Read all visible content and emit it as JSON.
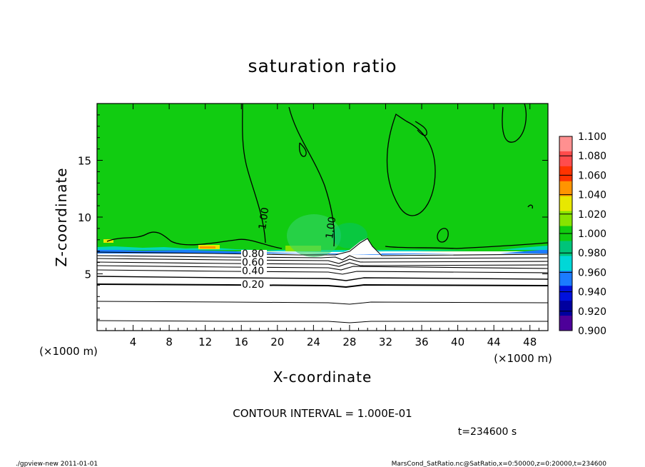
{
  "chart_data": {
    "type": "heatmap",
    "title": "saturation ratio",
    "xlabel": "X-coordinate",
    "ylabel": "Z-coordinate",
    "x_unit": "(×1000 m)",
    "y_unit": "(×1000 m)",
    "xlim": [
      0,
      50
    ],
    "ylim": [
      0,
      20
    ],
    "x_ticks": [
      4,
      8,
      12,
      16,
      20,
      24,
      28,
      32,
      36,
      40,
      44,
      48
    ],
    "y_ticks": [
      5,
      10,
      15
    ],
    "colorbar": {
      "levels": [
        "1.100",
        "1.080",
        "1.060",
        "1.040",
        "1.020",
        "1.000",
        "0.980",
        "0.960",
        "0.940",
        "0.920",
        "0.900"
      ],
      "colors": [
        "#ff9090",
        "#ff4c4c",
        "#ff3300",
        "#ff9400",
        "#e8e800",
        "#87e400",
        "#11cc11",
        "#00c47a",
        "#00d7d7",
        "#1b7bff",
        "#0011dd",
        "#00009f",
        "#4d0099"
      ]
    },
    "contour_labels": [
      "0.80",
      "0.60",
      "0.40",
      "0.20",
      "1.00",
      "1.00"
    ],
    "contour_interval_text": "CONTOUR INTERVAL = 1.000E-01",
    "time_text": "t=234600 s",
    "footer_left": "./gpview-new   2011-01-01",
    "footer_right": "MarsCond_SatRatio.nc@SatRatio,x=0:50000,z=0:20000,t=234600",
    "background_value": 1.0,
    "surface_layer_top_z": 7.0,
    "subsaturated_contours_z": [
      0.9,
      1.2,
      2.4,
      4.0,
      4.7,
      5.3,
      5.8,
      6.2,
      6.5,
      6.8
    ]
  }
}
